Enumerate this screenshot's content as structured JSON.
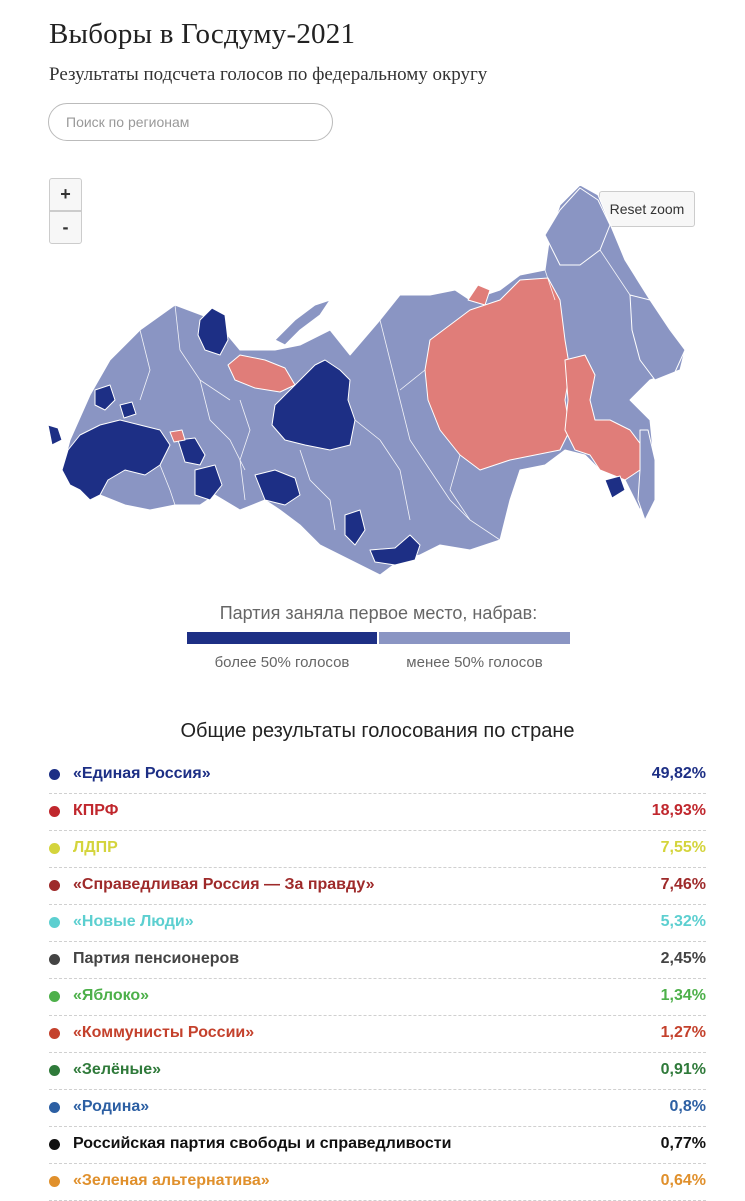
{
  "header": {
    "title": "Выборы в Госдуму-2021",
    "subtitle": "Результаты подсчета голосов по федеральному округу"
  },
  "search": {
    "placeholder": "Поиск по регионам",
    "value": ""
  },
  "map_controls": {
    "zoom_in": "+",
    "zoom_out": "-",
    "reset": "Reset zoom"
  },
  "map": {
    "colors": {
      "over50": "#1d2f85",
      "under50": "#8a95c3",
      "kprf": "#e07d79",
      "border": "#ffffff"
    }
  },
  "legend": {
    "title": "Партия заняла первое место, набрав:",
    "over": "более 50% голосов",
    "under": "менее 50% голосов"
  },
  "results": {
    "title": "Общие результаты голосования по стране",
    "items": [
      {
        "name": "«Единая Россия»",
        "value": "49,82%",
        "color": "#1d2f85"
      },
      {
        "name": "КПРФ",
        "value": "18,93%",
        "color": "#c0272d"
      },
      {
        "name": "ЛДПР",
        "value": "7,55%",
        "color": "#d4d43c"
      },
      {
        "name": "«Справедливая Россия — За правду»",
        "value": "7,46%",
        "color": "#9e2a2a"
      },
      {
        "name": "«Новые Люди»",
        "value": "5,32%",
        "color": "#5ccfd0"
      },
      {
        "name": "Партия пенсионеров",
        "value": "2,45%",
        "color": "#444444"
      },
      {
        "name": "«Яблоко»",
        "value": "1,34%",
        "color": "#4db04a"
      },
      {
        "name": "«Коммунисты России»",
        "value": "1,27%",
        "color": "#c4412c"
      },
      {
        "name": "«Зелёные»",
        "value": "0,91%",
        "color": "#2f7a3a"
      },
      {
        "name": "«Родина»",
        "value": "0,8%",
        "color": "#2c5fa3"
      },
      {
        "name": "Российская партия свободы и справедливости",
        "value": "0,77%",
        "color": "#111111"
      },
      {
        "name": "«Зеленая альтернатива»",
        "value": "0,64%",
        "color": "#e0902c"
      }
    ]
  }
}
